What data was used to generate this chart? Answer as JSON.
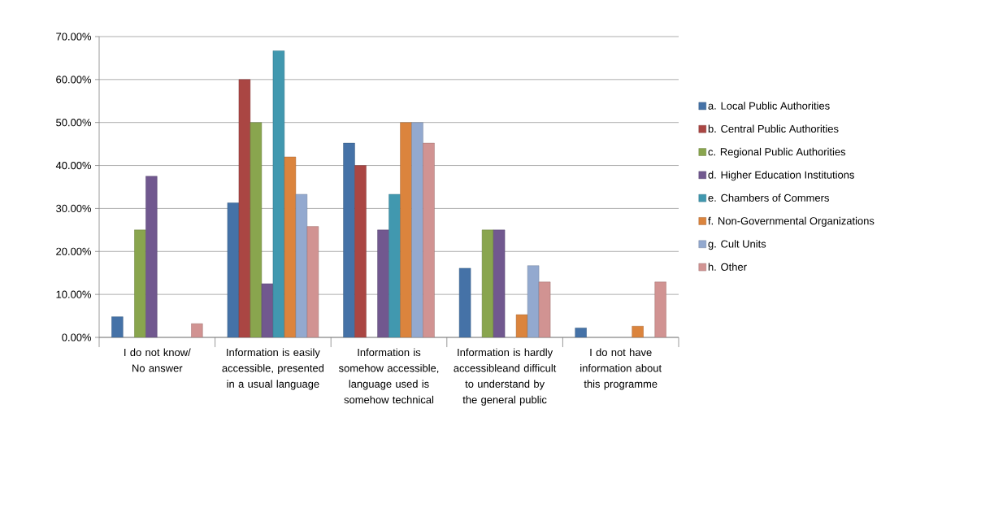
{
  "chart_data": {
    "type": "bar",
    "categories": [
      "I do not know/ No answer",
      "Information is easily accessible, presented in a usual language",
      "Information is somehow accessible, language used is somehow technical",
      "Information is hardly accessibleand difficult to understand by the general public",
      "I do not have information about this programme"
    ],
    "series": [
      {
        "name": "a. Local Public Authorities",
        "color": "#4572a7",
        "values": [
          4.8,
          31.3,
          45.2,
          16.1,
          2.2
        ]
      },
      {
        "name": "b. Central Public Authorities",
        "color": "#aa4643",
        "values": [
          null,
          60,
          40,
          null,
          null
        ]
      },
      {
        "name": "c. Regional Public Authorities",
        "color": "#89a54e",
        "values": [
          25,
          50,
          null,
          25,
          null
        ]
      },
      {
        "name": "d. Higher Education Institutions",
        "color": "#71588f",
        "values": [
          37.5,
          12.5,
          25,
          25,
          null
        ]
      },
      {
        "name": "e. Chambers of Commers",
        "color": "#4198af",
        "values": [
          null,
          66.7,
          33.3,
          null,
          null
        ]
      },
      {
        "name": "f. Non-Governmental Organizations",
        "color": "#db843d",
        "values": [
          null,
          42,
          50,
          5.3,
          2.6
        ]
      },
      {
        "name": "g. Cult Units",
        "color": "#93a9cf",
        "values": [
          null,
          33.3,
          50,
          16.7,
          null
        ]
      },
      {
        "name": "h. Other",
        "color": "#d19392",
        "values": [
          3.2,
          25.8,
          45.2,
          12.9,
          12.9
        ]
      }
    ],
    "ylim": [
      0,
      70
    ],
    "yticks": [
      {
        "value": 0,
        "label": "0.00%"
      },
      {
        "value": 10,
        "label": "10.00%"
      },
      {
        "value": 20,
        "label": "20.00%"
      },
      {
        "value": 30,
        "label": "30.00%"
      },
      {
        "value": 40,
        "label": "40.00%"
      },
      {
        "value": 50,
        "label": "50.00%"
      },
      {
        "value": 60,
        "label": "60.00%"
      },
      {
        "value": 70,
        "label": "70.00%"
      }
    ],
    "grid": "y",
    "legend": "right"
  }
}
